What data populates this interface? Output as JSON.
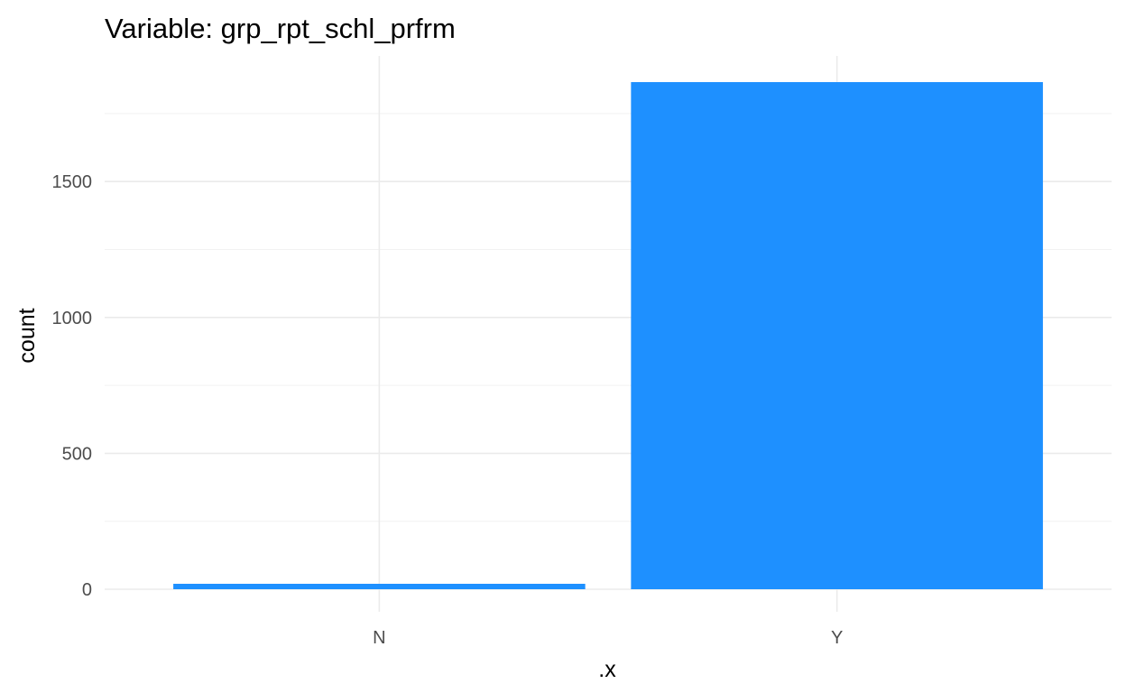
{
  "chart_data": {
    "type": "bar",
    "title": "Variable: grp_rpt_schl_prfrm",
    "xlabel": ".x",
    "ylabel": "count",
    "categories": [
      "N",
      "Y"
    ],
    "values": [
      20,
      1866
    ],
    "ylim": [
      0,
      1866
    ],
    "y_ticks": [
      0,
      500,
      1000,
      1500
    ],
    "y_tick_labels": [
      "0",
      "500",
      "1000",
      "1500"
    ],
    "grid": true,
    "legend": "none",
    "bar_color": "#1E90FF"
  }
}
